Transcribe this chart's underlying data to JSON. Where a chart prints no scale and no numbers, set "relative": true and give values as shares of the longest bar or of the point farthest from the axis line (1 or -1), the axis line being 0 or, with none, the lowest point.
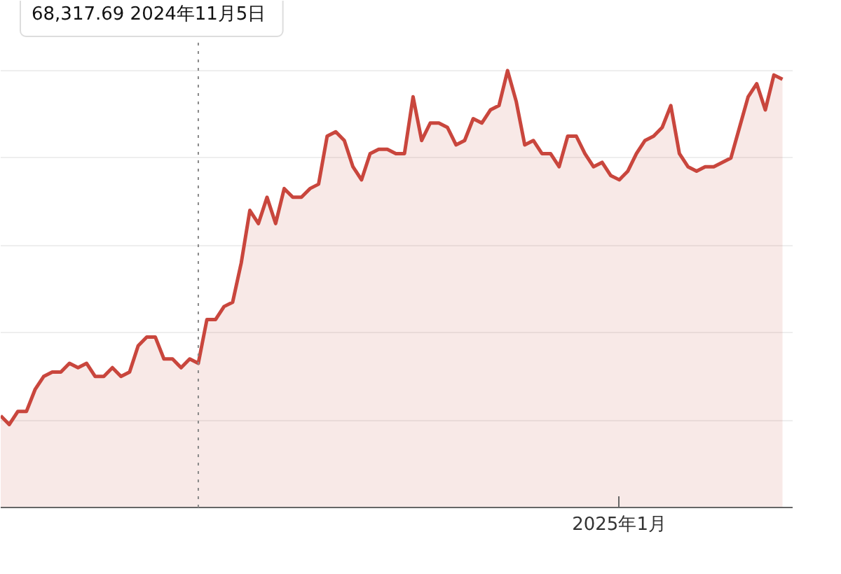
{
  "chart_data": {
    "type": "area",
    "relative": true,
    "grid": "y",
    "marker": "none",
    "line_style": "solid",
    "categories": [
      null,
      null,
      null,
      null,
      null,
      null,
      null,
      null,
      null,
      null,
      null,
      null,
      null,
      null,
      null,
      null,
      null,
      null,
      null,
      null,
      null,
      null,
      null,
      null,
      null,
      null,
      null,
      null,
      null,
      null,
      null,
      null,
      null,
      null,
      null,
      null,
      null,
      null,
      null,
      null,
      null,
      null,
      null,
      null,
      null,
      null,
      null,
      null,
      null,
      null,
      null,
      null,
      null,
      null,
      null,
      null,
      null,
      null,
      null,
      null,
      null,
      null,
      null,
      null,
      null,
      null,
      null,
      null,
      null,
      null,
      null,
      null,
      null,
      null,
      null,
      null,
      null,
      null,
      null,
      null,
      null,
      null,
      null,
      null,
      null,
      null,
      null,
      null,
      null,
      null,
      null,
      null
    ],
    "series": [
      {
        "color": "#c9463d",
        "values": [
          0.21,
          0.19,
          0.22,
          0.22,
          0.27,
          0.3,
          0.31,
          0.31,
          0.33,
          0.32,
          0.33,
          0.3,
          0.3,
          0.32,
          0.3,
          0.31,
          0.37,
          0.39,
          0.39,
          0.34,
          0.34,
          0.32,
          0.34,
          0.33,
          0.43,
          0.43,
          0.46,
          0.47,
          0.56,
          0.68,
          0.65,
          0.71,
          0.65,
          0.73,
          0.71,
          0.71,
          0.73,
          0.74,
          0.85,
          0.86,
          0.84,
          0.78,
          0.75,
          0.81,
          0.82,
          0.82,
          0.81,
          0.81,
          0.94,
          0.84,
          0.88,
          0.88,
          0.87,
          0.83,
          0.84,
          0.89,
          0.88,
          0.91,
          0.92,
          1.0,
          0.93,
          0.83,
          0.84,
          0.81,
          0.81,
          0.78,
          0.85,
          0.85,
          0.81,
          0.78,
          0.79,
          0.76,
          0.75,
          0.77,
          0.81,
          0.84,
          0.85,
          0.87,
          0.92,
          0.81,
          0.78,
          0.77,
          0.78,
          0.78,
          0.79,
          0.8,
          0.87,
          0.94,
          0.97,
          0.91,
          0.99,
          0.98
        ]
      }
    ],
    "annotations": [
      "68,317.69  2024年11月5日",
      "2025年1月"
    ]
  }
}
